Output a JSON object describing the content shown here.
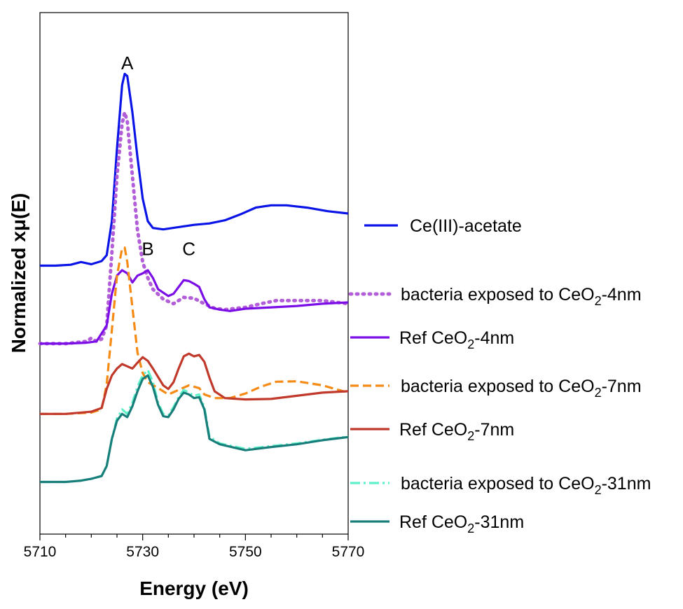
{
  "chart_data": {
    "type": "line",
    "xlabel": "Energy (eV)",
    "ylabel": "Normalized xμ(E)",
    "xlim": [
      5710,
      5770
    ],
    "x_ticks": [
      5710,
      5730,
      5750,
      5770
    ],
    "x_minor_step": 5,
    "grid": false,
    "legend_position": "right",
    "annotations": [
      {
        "text": "A",
        "x": 5727,
        "y": 7.55
      },
      {
        "text": "B",
        "x": 5731,
        "y": 3.45
      },
      {
        "text": "C",
        "x": 5739,
        "y": 3.45
      }
    ],
    "series": [
      {
        "label": {
          "pre": "Ce(III)-acetate",
          "sub": "",
          "post": ""
        },
        "color": "#0a14e6",
        "style": "solid",
        "points": [
          [
            5710,
            3.22
          ],
          [
            5713,
            3.22
          ],
          [
            5716,
            3.24
          ],
          [
            5718,
            3.3
          ],
          [
            5720,
            3.25
          ],
          [
            5722,
            3.32
          ],
          [
            5723,
            3.45
          ],
          [
            5724,
            4.2
          ],
          [
            5725,
            5.8
          ],
          [
            5726,
            7.2
          ],
          [
            5726.5,
            7.45
          ],
          [
            5727,
            7.4
          ],
          [
            5728,
            6.6
          ],
          [
            5729,
            5.6
          ],
          [
            5730,
            4.7
          ],
          [
            5731,
            4.2
          ],
          [
            5732,
            4.05
          ],
          [
            5734,
            4.02
          ],
          [
            5737,
            4.07
          ],
          [
            5740,
            4.12
          ],
          [
            5743,
            4.15
          ],
          [
            5746,
            4.22
          ],
          [
            5749,
            4.35
          ],
          [
            5752,
            4.5
          ],
          [
            5755,
            4.55
          ],
          [
            5758,
            4.55
          ],
          [
            5762,
            4.5
          ],
          [
            5766,
            4.42
          ],
          [
            5770,
            4.37
          ]
        ]
      },
      {
        "label": {
          "pre": "bacteria exposed to CeO",
          "sub": "2",
          "post": "-4nm"
        },
        "color": "#b25ed8",
        "style": "dotted",
        "points": [
          [
            5710,
            1.5
          ],
          [
            5715,
            1.5
          ],
          [
            5719,
            1.55
          ],
          [
            5720,
            1.62
          ],
          [
            5721,
            1.55
          ],
          [
            5722,
            1.6
          ],
          [
            5723,
            1.9
          ],
          [
            5724,
            3.5
          ],
          [
            5725,
            5.2
          ],
          [
            5726,
            6.35
          ],
          [
            5726.5,
            6.6
          ],
          [
            5727,
            6.4
          ],
          [
            5728,
            5.2
          ],
          [
            5729,
            4.0
          ],
          [
            5730,
            3.3
          ],
          [
            5731,
            2.95
          ],
          [
            5732,
            2.7
          ],
          [
            5734,
            2.48
          ],
          [
            5736,
            2.38
          ],
          [
            5738,
            2.52
          ],
          [
            5740,
            2.5
          ],
          [
            5742,
            2.38
          ],
          [
            5744,
            2.28
          ],
          [
            5746,
            2.25
          ],
          [
            5750,
            2.3
          ],
          [
            5753,
            2.38
          ],
          [
            5756,
            2.45
          ],
          [
            5760,
            2.45
          ],
          [
            5765,
            2.45
          ],
          [
            5770,
            2.38
          ]
        ]
      },
      {
        "label": {
          "pre": "Ref CeO",
          "sub": "2",
          "post": "-4nm"
        },
        "color": "#7b0ee6",
        "style": "solid",
        "points": [
          [
            5710,
            1.5
          ],
          [
            5715,
            1.5
          ],
          [
            5719,
            1.52
          ],
          [
            5721,
            1.55
          ],
          [
            5723,
            1.9
          ],
          [
            5724,
            2.6
          ],
          [
            5725,
            3.0
          ],
          [
            5726,
            3.12
          ],
          [
            5727,
            3.05
          ],
          [
            5728,
            2.85
          ],
          [
            5729,
            3.0
          ],
          [
            5730,
            3.05
          ],
          [
            5731,
            3.12
          ],
          [
            5732,
            2.95
          ],
          [
            5733,
            2.7
          ],
          [
            5735,
            2.55
          ],
          [
            5736,
            2.6
          ],
          [
            5737,
            2.75
          ],
          [
            5738,
            2.9
          ],
          [
            5739,
            2.88
          ],
          [
            5740,
            2.82
          ],
          [
            5741,
            2.75
          ],
          [
            5742,
            2.48
          ],
          [
            5743,
            2.3
          ],
          [
            5745,
            2.25
          ],
          [
            5747,
            2.22
          ],
          [
            5750,
            2.27
          ],
          [
            5755,
            2.3
          ],
          [
            5760,
            2.33
          ],
          [
            5765,
            2.38
          ],
          [
            5770,
            2.41
          ]
        ]
      },
      {
        "label": {
          "pre": "bacteria exposed to CeO",
          "sub": "2",
          "post": "-7nm"
        },
        "color": "#f58a14",
        "style": "dashed",
        "points": [
          [
            5710,
            -0.05
          ],
          [
            5715,
            -0.05
          ],
          [
            5720,
            -0.02
          ],
          [
            5722,
            0.05
          ],
          [
            5723,
            0.6
          ],
          [
            5724,
            1.8
          ],
          [
            5725,
            3.0
          ],
          [
            5726,
            3.6
          ],
          [
            5726.5,
            3.62
          ],
          [
            5727,
            3.3
          ],
          [
            5728,
            2.3
          ],
          [
            5729,
            1.3
          ],
          [
            5730,
            0.85
          ],
          [
            5731,
            0.65
          ],
          [
            5733,
            0.52
          ],
          [
            5735,
            0.38
          ],
          [
            5737,
            0.48
          ],
          [
            5739,
            0.58
          ],
          [
            5741,
            0.52
          ],
          [
            5742,
            0.38
          ],
          [
            5744,
            0.3
          ],
          [
            5747,
            0.3
          ],
          [
            5750,
            0.4
          ],
          [
            5753,
            0.55
          ],
          [
            5756,
            0.66
          ],
          [
            5760,
            0.67
          ],
          [
            5765,
            0.58
          ],
          [
            5770,
            0.42
          ]
        ]
      },
      {
        "label": {
          "pre": "Ref CeO",
          "sub": "2",
          "post": "-7nm"
        },
        "color": "#c0392b",
        "style": "solid",
        "points": [
          [
            5710,
            -0.05
          ],
          [
            5715,
            -0.05
          ],
          [
            5720,
            0.0
          ],
          [
            5722,
            0.08
          ],
          [
            5723,
            0.5
          ],
          [
            5724,
            0.8
          ],
          [
            5725,
            0.95
          ],
          [
            5726,
            1.05
          ],
          [
            5727,
            1.0
          ],
          [
            5728,
            0.95
          ],
          [
            5729,
            1.08
          ],
          [
            5730,
            1.2
          ],
          [
            5731,
            1.12
          ],
          [
            5732,
            0.95
          ],
          [
            5734,
            0.58
          ],
          [
            5735,
            0.5
          ],
          [
            5736,
            0.65
          ],
          [
            5737,
            0.95
          ],
          [
            5738,
            1.22
          ],
          [
            5739,
            1.28
          ],
          [
            5740,
            1.22
          ],
          [
            5741,
            1.25
          ],
          [
            5742,
            1.1
          ],
          [
            5743,
            0.75
          ],
          [
            5744,
            0.45
          ],
          [
            5746,
            0.3
          ],
          [
            5750,
            0.27
          ],
          [
            5755,
            0.28
          ],
          [
            5760,
            0.35
          ],
          [
            5765,
            0.42
          ],
          [
            5770,
            0.45
          ]
        ]
      },
      {
        "label": {
          "pre": "bacteria exposed to CeO",
          "sub": "2",
          "post": "-31nm"
        },
        "color": "#5ef0c8",
        "style": "dashdot",
        "points": [
          [
            5710,
            -1.55
          ],
          [
            5715,
            -1.55
          ],
          [
            5718,
            -1.52
          ],
          [
            5720,
            -1.48
          ],
          [
            5722,
            -1.42
          ],
          [
            5723,
            -1.2
          ],
          [
            5724,
            -0.6
          ],
          [
            5725,
            -0.15
          ],
          [
            5726,
            0.05
          ],
          [
            5727,
            -0.05
          ],
          [
            5728,
            0.2
          ],
          [
            5729,
            0.55
          ],
          [
            5730,
            0.8
          ],
          [
            5731,
            0.92
          ],
          [
            5732,
            0.65
          ],
          [
            5733,
            0.2
          ],
          [
            5734,
            -0.05
          ],
          [
            5735,
            -0.08
          ],
          [
            5736,
            0.1
          ],
          [
            5737,
            0.32
          ],
          [
            5738,
            0.48
          ],
          [
            5739,
            0.42
          ],
          [
            5740,
            0.35
          ],
          [
            5741,
            0.38
          ],
          [
            5742,
            0.1
          ],
          [
            5743,
            -0.55
          ],
          [
            5745,
            -0.7
          ],
          [
            5750,
            -0.82
          ],
          [
            5755,
            -0.76
          ],
          [
            5760,
            -0.7
          ],
          [
            5765,
            -0.62
          ],
          [
            5770,
            -0.55
          ]
        ]
      },
      {
        "label": {
          "pre": "Ref CeO",
          "sub": "2",
          "post": "-31nm"
        },
        "color": "#177e7a",
        "style": "solid",
        "points": [
          [
            5710,
            -1.55
          ],
          [
            5715,
            -1.55
          ],
          [
            5718,
            -1.52
          ],
          [
            5720,
            -1.48
          ],
          [
            5722,
            -1.42
          ],
          [
            5723,
            -1.2
          ],
          [
            5724,
            -0.6
          ],
          [
            5725,
            -0.2
          ],
          [
            5726,
            -0.05
          ],
          [
            5727,
            -0.12
          ],
          [
            5728,
            0.12
          ],
          [
            5729,
            0.45
          ],
          [
            5730,
            0.72
          ],
          [
            5731,
            0.8
          ],
          [
            5732,
            0.55
          ],
          [
            5733,
            0.15
          ],
          [
            5734,
            -0.1
          ],
          [
            5735,
            -0.12
          ],
          [
            5736,
            0.05
          ],
          [
            5737,
            0.28
          ],
          [
            5738,
            0.42
          ],
          [
            5739,
            0.38
          ],
          [
            5740,
            0.3
          ],
          [
            5741,
            0.32
          ],
          [
            5742,
            0.05
          ],
          [
            5743,
            -0.6
          ],
          [
            5745,
            -0.72
          ],
          [
            5750,
            -0.85
          ],
          [
            5755,
            -0.78
          ],
          [
            5760,
            -0.72
          ],
          [
            5765,
            -0.63
          ],
          [
            5770,
            -0.56
          ]
        ]
      }
    ]
  }
}
